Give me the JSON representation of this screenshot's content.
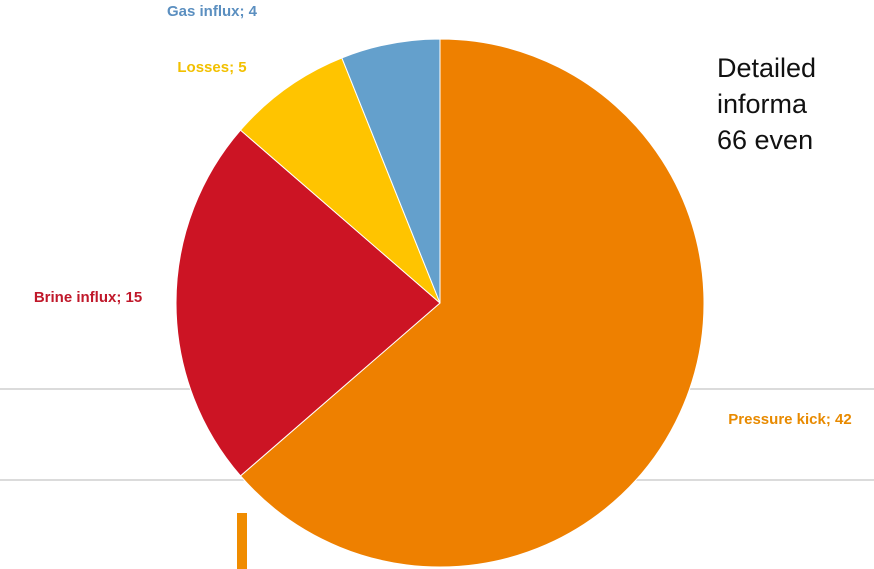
{
  "chart_data": {
    "type": "pie",
    "categories": [
      "Pressure kick",
      "Brine influx",
      "Losses",
      "Gas influx"
    ],
    "values": [
      42,
      15,
      5,
      4
    ],
    "value_labels": [
      "Pressure kick; 42",
      "Brine influx; 15",
      "Losses; 5",
      "Gas influx; 4"
    ],
    "colors": [
      "#ee8000",
      "#cc1424",
      "#ffc400",
      "#64a0cc"
    ],
    "label_colors": [
      "#e88a00",
      "#c0182a",
      "#f2c000",
      "#5b8fc0"
    ]
  },
  "note_lines": [
    "Detailed",
    "informa",
    "66 even"
  ]
}
